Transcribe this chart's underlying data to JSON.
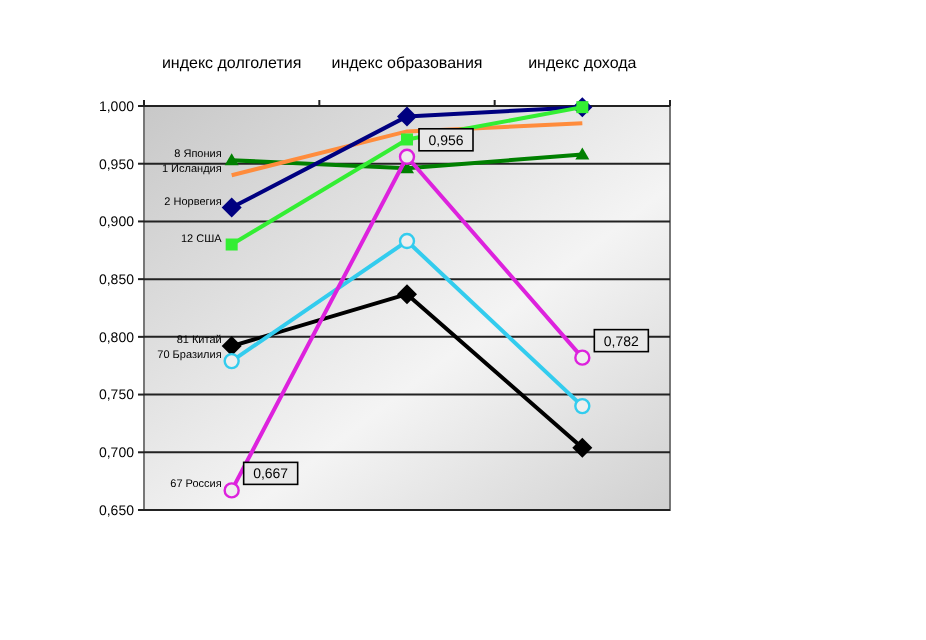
{
  "chart_data": {
    "type": "line",
    "categories": [
      "индекс долголетия",
      "индекс образования",
      "индекс дохода"
    ],
    "series": [
      {
        "name": "8 Япония",
        "color": "#008000",
        "marker": "triangle",
        "values": [
          0.953,
          0.946,
          0.958
        ]
      },
      {
        "name": "1 Исландия",
        "color": "#ff8c3c",
        "marker": "none",
        "values": [
          0.94,
          0.978,
          0.985
        ]
      },
      {
        "name": "2 Норвегия",
        "color": "#000080",
        "marker": "diamond",
        "values": [
          0.912,
          0.991,
          0.999
        ]
      },
      {
        "name": "12 США",
        "color": "#33ee33",
        "marker": "square",
        "values": [
          0.88,
          0.971,
          0.999
        ]
      },
      {
        "name": "81 Китай",
        "color": "#000000",
        "marker": "diamond",
        "values": [
          0.792,
          0.837,
          0.704
        ]
      },
      {
        "name": "70 Бразилия",
        "color": "#33ccee",
        "marker": "circle",
        "values": [
          0.779,
          0.883,
          0.74
        ]
      },
      {
        "name": "67 Россия",
        "color": "#dd22dd",
        "marker": "circle",
        "values": [
          0.667,
          0.956,
          0.782
        ],
        "value_labels": [
          "0,667",
          "0,956",
          "0,782"
        ]
      }
    ],
    "ylim": [
      0.65,
      1.0
    ],
    "yticks": [
      {
        "value": 0.65,
        "label": "0,650"
      },
      {
        "value": 0.7,
        "label": "0,700"
      },
      {
        "value": 0.75,
        "label": "0,750"
      },
      {
        "value": 0.8,
        "label": "0,800"
      },
      {
        "value": 0.85,
        "label": "0,850"
      },
      {
        "value": 0.9,
        "label": "0,900"
      },
      {
        "value": 0.95,
        "label": "0,950"
      },
      {
        "value": 1.0,
        "label": "1,000"
      }
    ],
    "grid": "y",
    "line_style": "solid"
  }
}
